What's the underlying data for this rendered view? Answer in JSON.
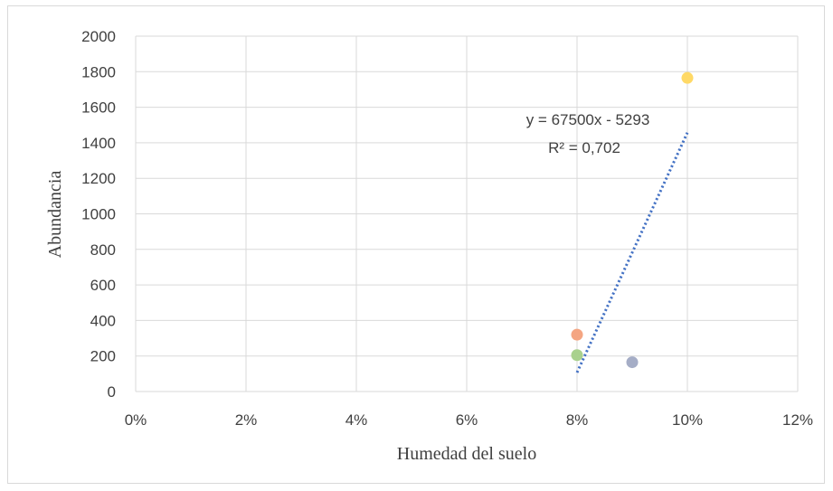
{
  "chart_data": {
    "type": "scatter",
    "title": "",
    "xlabel": "Humedad del suelo",
    "ylabel": "Abundancia",
    "xlim": [
      0,
      0.12
    ],
    "ylim": [
      0,
      2000
    ],
    "x_ticks": [
      0,
      0.02,
      0.04,
      0.06,
      0.08,
      0.1,
      0.12
    ],
    "x_tick_labels": [
      "0%",
      "2%",
      "4%",
      "6%",
      "8%",
      "10%",
      "12%"
    ],
    "y_ticks": [
      0,
      200,
      400,
      600,
      800,
      1000,
      1200,
      1400,
      1600,
      1800,
      2000
    ],
    "y_tick_labels": [
      "0",
      "200",
      "400",
      "600",
      "800",
      "1000",
      "1200",
      "1400",
      "1600",
      "1800",
      "2000"
    ],
    "grid": true,
    "legend": "none",
    "points": [
      {
        "x": 0.08,
        "y": 320,
        "color": "#F4A582"
      },
      {
        "x": 0.08,
        "y": 205,
        "color": "#A9D18E"
      },
      {
        "x": 0.09,
        "y": 165,
        "color": "#A5ADC6"
      },
      {
        "x": 0.1,
        "y": 1765,
        "color": "#FFD966"
      }
    ],
    "trendline": {
      "type": "linear",
      "slope": 67500,
      "intercept": -5293,
      "x_range": [
        0.08,
        0.1
      ],
      "color": "#4472C4",
      "style": "dotted",
      "equation": "y = 67500x - 5293",
      "r_squared": "R² = 0,702"
    }
  }
}
